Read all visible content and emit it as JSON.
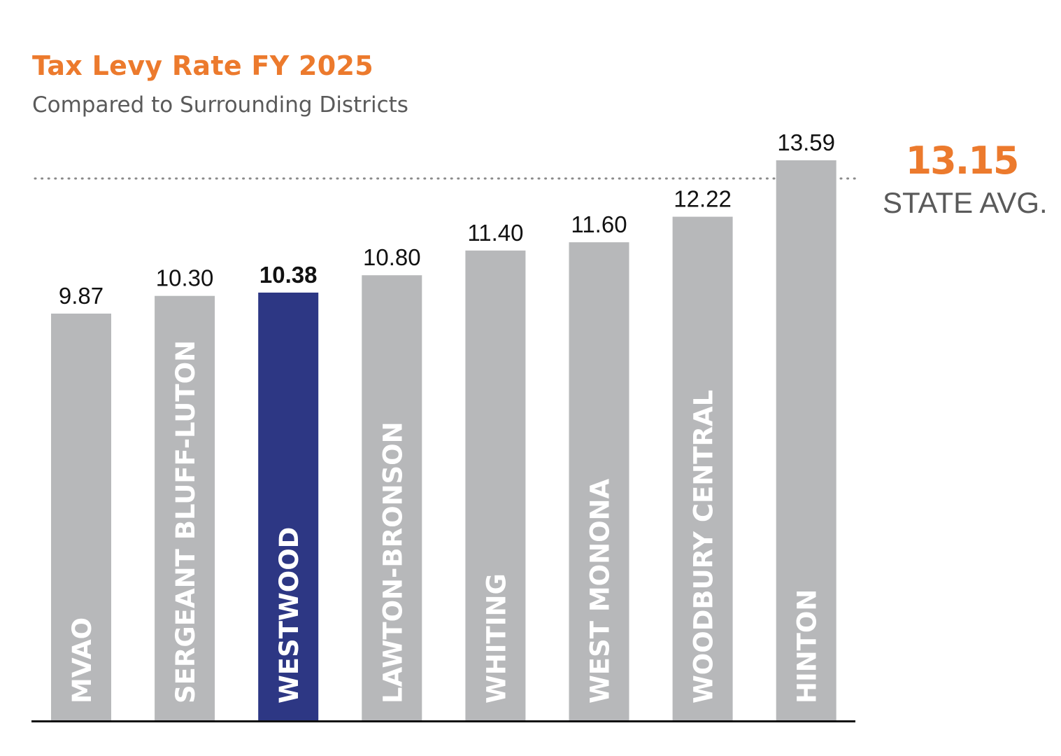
{
  "header": {
    "title": "Tax Levy Rate FY 2025",
    "subtitle": "Compared to Surrounding Districts"
  },
  "reference": {
    "value_label": "13.15",
    "label": "STATE AVG."
  },
  "colors": {
    "accent": "#ec7a2d",
    "bar": "#b7b8ba",
    "highlight": "#2d3784",
    "bar_text": "#ffffff",
    "value_text": "#111111",
    "axis": "#111111",
    "reference_line": "#8a8a8a"
  },
  "chart_data": {
    "type": "bar",
    "title": "Tax Levy Rate FY 2025",
    "subtitle": "Compared to Surrounding Districts",
    "categories": [
      "MVAO",
      "SERGEANT BLUFF-LUTON",
      "WESTWOOD",
      "LAWTON-BRONSON",
      "WHITING",
      "WEST MONONA",
      "WOODBURY CENTRAL",
      "HINTON"
    ],
    "values": [
      9.87,
      10.3,
      10.38,
      10.8,
      11.4,
      11.6,
      12.22,
      13.59
    ],
    "value_labels": [
      "9.87",
      "10.30",
      "10.38",
      "10.80",
      "11.40",
      "11.60",
      "12.22",
      "13.59"
    ],
    "highlight": "WESTWOOD",
    "reference_line": {
      "value": 13.15,
      "label": "STATE AVG.",
      "style": "dotted"
    },
    "ylim": [
      0,
      14
    ],
    "grid": false,
    "legend": "none",
    "category_labels": "inside bars, rotated vertical"
  }
}
